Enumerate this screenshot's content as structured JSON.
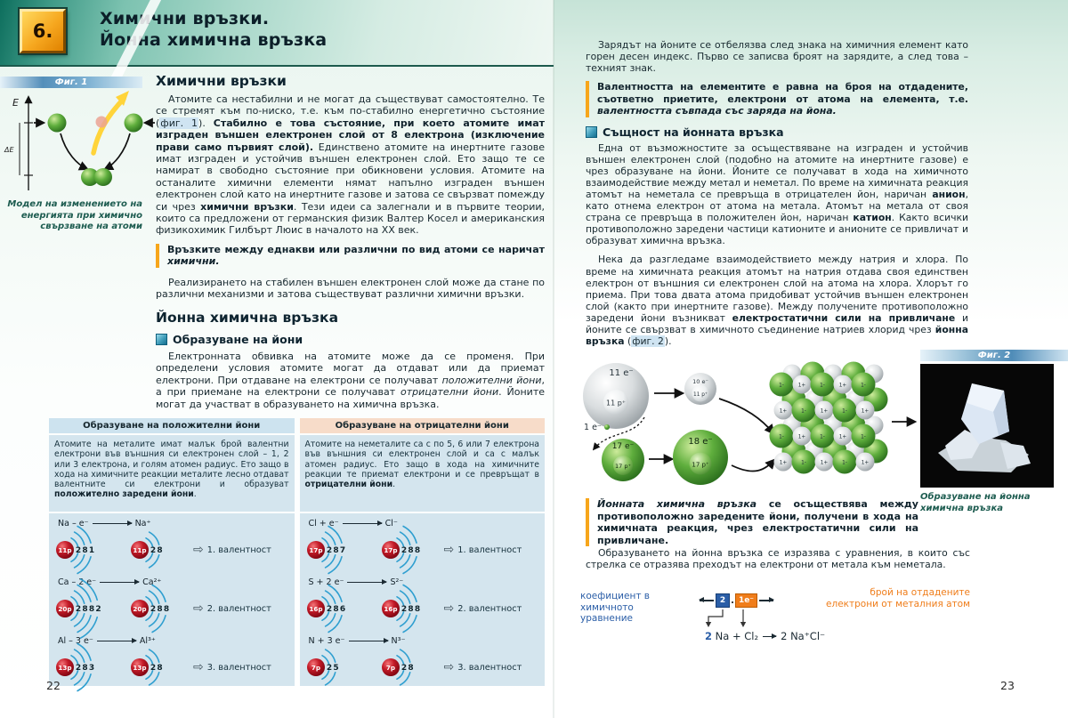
{
  "header": {
    "lesson_number": "6.",
    "title_line1": "Химични връзки.",
    "title_line2": "Йонна химична връзка"
  },
  "left_page": {
    "page_number": "22",
    "fig1": {
      "label": "Фиг. 1",
      "axis_label": "E",
      "delta_label": "ΔE",
      "caption": "Модел на изменението на енергията при химично свързване на атоми"
    },
    "chem_bonds": {
      "heading": "Химични връзки",
      "p1": {
        "t1": "Атомите са нестабилни и не могат да съществуват самостоятелно. Те се стремят към по-ниско, т.е. към по-стабилно енергетично състояние (",
        "fig_ref": "фиг. 1",
        "t2": "). ",
        "b1": "Стабилно е това състояние, при което атомите имат изграден външен електронен слой от 8 електрона (изключение прави само първият слой).",
        "t3": " Единствено атомите на инертните газове имат изграден и устойчив външен електронен слой. Ето защо те се намират в свободно състояние при обикновени условия. Атомите на останалите химични елементи нямат напълно изграден външен електронен слой като на инертните газове и затова се свързват помежду си чрез ",
        "b2": "химични връзки",
        "t4": ". Тези идеи са залегнали и в първите теории, които са предложени от германския физик Валтер Косел и американския физикохимик Гилбърт Люис в началото на XX век."
      },
      "def": {
        "b": "Връзките между еднакви или различни по вид атоми се наричат ",
        "bi": "химични."
      },
      "p2": "Реализирането на стабилен външен електронен слой може да стане по различни механизми и затова съществуват различни химични връзки."
    },
    "ionic": {
      "heading": "Йонна химична връзка",
      "sub": "Образуване на йони",
      "p3": {
        "t1": "Електронната обвивка на атомите може да се променя. При определени условия атомите могат да отдават или да приемат електрони. При отдаване на електрони се получават ",
        "i1": "положителни йони",
        "t2": ", а при приемане на електрони се получават ",
        "i2": "отрицателни йони",
        "t3": ". Йоните могат да участват в образуването на химична връзка."
      }
    },
    "table": {
      "header_positive": "Образуване на положителни йони",
      "header_negative": "Образуване на отрицателни йони",
      "body_positive": {
        "t1": "Атомите на металите имат малък брой валентни електрони във външния си електронен слой – 1, 2 или 3 електрона, и голям атомен радиус. Ето защо в хода на химичните реакции металите лесно отдават валентните си електрони и образуват ",
        "b": "положително заредени йони",
        "t2": "."
      },
      "body_negative": {
        "t1": "Атомите на неметалите са с по 5, 6 или 7 електрона във външния си електронен слой и са с малък атомен радиус. Ето защо в хода на химичните реакции те приемат електрони и се превръщат в ",
        "b": "отрицателни йони",
        "t2": "."
      },
      "rows_positive": [
        {
          "reactant": "Na – e⁻",
          "product": "Na⁺",
          "atom_p": "11p",
          "atom_shells": "2 8 1",
          "ion_p": "11p",
          "ion_shells": "2 8",
          "valence": "1. валентност"
        },
        {
          "reactant": "Ca – 2 e⁻",
          "product": "Ca²⁺",
          "atom_p": "20p",
          "atom_shells": "2 8 8 2",
          "ion_p": "20p",
          "ion_shells": "2 8 8",
          "valence": "2. валентност"
        },
        {
          "reactant": "Al – 3 e⁻",
          "product": "Al³⁺",
          "atom_p": "13p",
          "atom_shells": "2 8 3",
          "ion_p": "13p",
          "ion_shells": "2 8",
          "valence": "3. валентност"
        }
      ],
      "rows_negative": [
        {
          "reactant": "Cl + e⁻",
          "product": "Cl⁻",
          "atom_p": "17p",
          "atom_shells": "2 8 7",
          "ion_p": "17p",
          "ion_shells": "2 8 8",
          "valence": "1. валентност"
        },
        {
          "reactant": "S + 2 e⁻",
          "product": "S²⁻",
          "atom_p": "16p",
          "atom_shells": "2 8 6",
          "ion_p": "16p",
          "ion_shells": "2 8 8",
          "valence": "2. валентност"
        },
        {
          "reactant": "N + 3 e⁻",
          "product": "N³⁻",
          "atom_p": "7p",
          "atom_shells": "2 5",
          "ion_p": "7p",
          "ion_shells": "2 8",
          "valence": "3. валентност"
        }
      ]
    }
  },
  "right_page": {
    "page_number": "23",
    "p1": "Зарядът на йоните се отбелязва след знака на химичния елемент като горен десен индекс. Първо се записва броят на зарядите, а след това – техният знак.",
    "def1": {
      "b": "Валентността на елементите е равна на броя на отдадените, съответно приетите, електрони от атома на елемента, т.е. ",
      "bi": "валентността съвпада със заряда на йона."
    },
    "essence": {
      "sub": "Същност на йонната връзка",
      "p2": {
        "t1": "Една от възможностите за осъществяване на изграден и устойчив външен електронен слой (подобно на атомите на инертните газове) е чрез образуване на йони. Йоните се получават в хода на химичното взаимодействие между метал и неметал. По време на химичната реакция атомът на неметала се превръща в отрицателен йон, наричан ",
        "b1": "анион",
        "t2": ", като отнема електрон от атома на метала. Атомът на метала от своя страна се превръща в положителен йон, наричан ",
        "b2": "катион",
        "t3": ". Както всички противоположно заредени частици катионите и анионите се привличат и образуват химична връзка."
      },
      "p3": {
        "t1": "Нека да разгледаме взаимодействието между натрия и хлора. По време на химичната реакция атомът на натрия отдава своя единствен електрон от външния си електронен слой на атома на хлора. Хлорът го приема. При това двата атома придобиват устойчив външен електронен слой (както при инертните газове). Между получените противоположно заредени йони възникват ",
        "b1": "електростатични сили на привличане",
        "t2": " и йоните се свързват в химичното съединение натриев хлорид чрез ",
        "b2": "йонна връзка",
        "t3": " (",
        "fig_ref": "фиг. 2",
        "t4": ")."
      }
    },
    "fig2": {
      "label": "Фиг. 2",
      "na_atom_e": "11 e⁻",
      "na_atom_p": "11 p⁺",
      "na_ion_e": "10 e⁻",
      "na_ion_p": "11 p⁺",
      "electron": "1 e⁻",
      "cl_atom_e": "17 e⁻",
      "cl_atom_p": "17 p⁺",
      "cl_ion_e": "18 e⁻",
      "cl_ion_p": "17 p⁺",
      "cation_label": "1+",
      "anion_label": "1-",
      "caption": "Образуване на йонна химична връзка"
    },
    "def2": {
      "bi": "Йонната химична връзка ",
      "b": "се осъществява между противоположно заредените йони, получени в хода на химичната реакция, чрез електростатични сили на привличане."
    },
    "p4": "Образуването на йонна връзка се изразява с уравнения, в които със стрелка се отразява преходът на електрони от метала към неметала.",
    "equation": {
      "left_label_1": "коефициент в химичното",
      "left_label_2": "уравнение",
      "coef_box": "2",
      "dot": ".",
      "electron_box": "1e⁻",
      "right_label_1": "брой на отдадените",
      "right_label_2": "електрони от металния атом",
      "eq_coef": "2",
      "eq_reagents": " Na + Cl₂",
      "eq_product": "2 Na⁺Cl⁻"
    }
  }
}
